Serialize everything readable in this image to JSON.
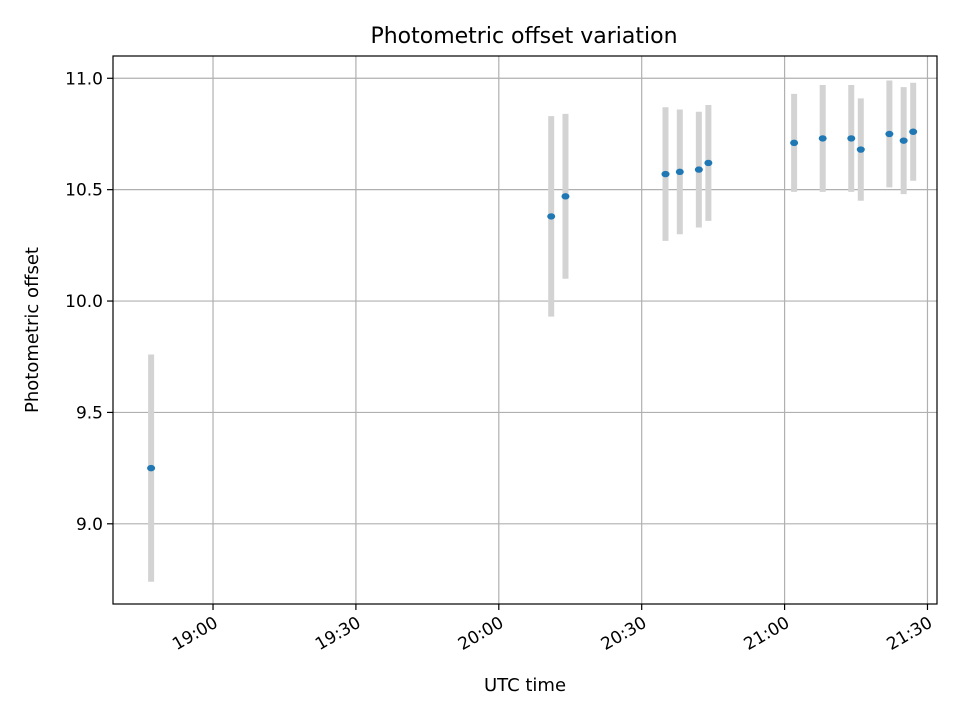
{
  "chart_data": {
    "type": "scatter",
    "title": "Photometric offset variation",
    "xlabel": "UTC time",
    "ylabel": "Photometric offset",
    "xlim": [
      "18:39",
      "21:32"
    ],
    "ylim": [
      8.64,
      11.1
    ],
    "x_ticks": [
      "19:00",
      "19:30",
      "20:00",
      "20:30",
      "21:00",
      "21:30"
    ],
    "y_ticks": [
      9.0,
      9.5,
      10.0,
      10.5,
      11.0
    ],
    "grid": true,
    "colors": {
      "points": "#1f77b4",
      "errorbars": "#d3d3d3"
    },
    "points": [
      {
        "x": "18:47",
        "y": 9.25,
        "err": 0.51
      },
      {
        "x": "20:11",
        "y": 10.38,
        "err": 0.45
      },
      {
        "x": "20:14",
        "y": 10.47,
        "err": 0.37
      },
      {
        "x": "20:35",
        "y": 10.57,
        "err": 0.3
      },
      {
        "x": "20:38",
        "y": 10.58,
        "err": 0.28
      },
      {
        "x": "20:42",
        "y": 10.59,
        "err": 0.26
      },
      {
        "x": "20:44",
        "y": 10.62,
        "err": 0.26
      },
      {
        "x": "21:02",
        "y": 10.71,
        "err": 0.22
      },
      {
        "x": "21:08",
        "y": 10.73,
        "err": 0.24
      },
      {
        "x": "21:14",
        "y": 10.73,
        "err": 0.24
      },
      {
        "x": "21:16",
        "y": 10.68,
        "err": 0.23
      },
      {
        "x": "21:22",
        "y": 10.75,
        "err": 0.24
      },
      {
        "x": "21:25",
        "y": 10.72,
        "err": 0.24
      },
      {
        "x": "21:27",
        "y": 10.76,
        "err": 0.22
      }
    ]
  }
}
